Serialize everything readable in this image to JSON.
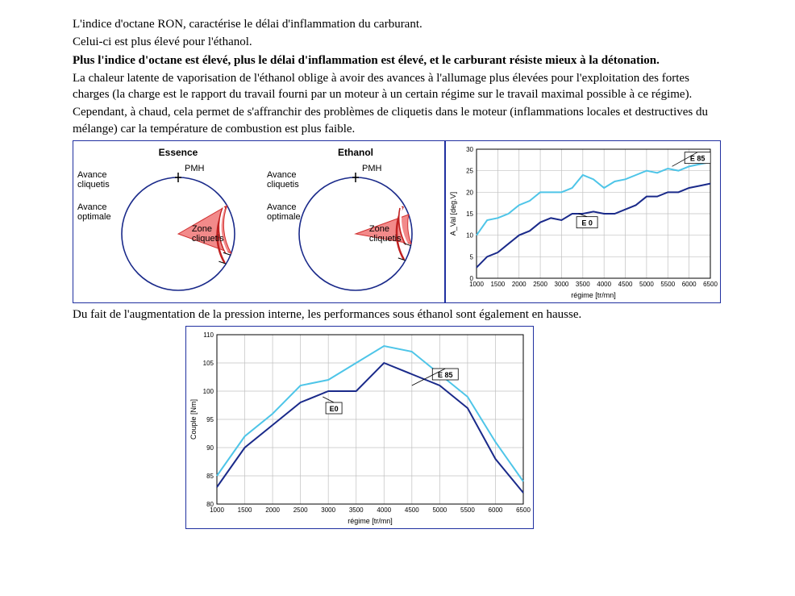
{
  "text": {
    "p1": "L'indice d'octane RON, caractérise le délai d'inflammation du carburant.",
    "p2": "Celui-ci est plus élevé pour l'éthanol.",
    "p3": "Plus l'indice d'octane est élevé, plus le délai d'inflammation est élevé, et le carburant résiste mieux à la détonation.",
    "p4": "La chaleur latente de vaporisation de l'éthanol oblige à avoir des avances à l'allumage plus élevées pour l'exploitation des fortes charges (la charge est le rapport du travail fourni par un moteur à un certain régime sur le travail maximal possible à ce régime).",
    "p5": "Cependant, à chaud, cela permet de s'affranchir des problèmes de cliquetis dans le moteur (inflammations locales et destructives du mélange) car la température de combustion est plus faible.",
    "p6": "Du fait de l'augmentation de la pression interne, les performances sous éthanol sont également en hausse."
  },
  "circles": {
    "essence": {
      "title": "Essence",
      "labels": {
        "pmh": "PMH",
        "avance_cliquetis": "Avance\ncliquetis",
        "avance_optimale": "Avance\noptimale",
        "zone": "Zone\ncliquetis"
      },
      "wedge_start_deg": 60,
      "wedge_end_deg": 110,
      "arc_optimale_deg": 122,
      "arc_cliquetis_deg": 112
    },
    "ethanol": {
      "title": "Ethanol",
      "labels": {
        "pmh": "PMH",
        "avance_cliquetis": "Avance\ncliquetis",
        "avance_optimale": "Avance\noptimale",
        "zone": "Zone\ncliquetis"
      },
      "wedge_start_deg": 70,
      "wedge_end_deg": 100,
      "arc_optimale_deg": 118,
      "arc_cliquetis_deg": 102
    },
    "style": {
      "circle_stroke": "#1a2a8a",
      "circle_stroke_w": 1.6,
      "wedge_fill": "#f28a8a",
      "wedge_stroke": "#d03030",
      "arc_optimale_stroke": "#c02020",
      "arc_cliquetis_stroke": "#ffffff",
      "radius": 70
    }
  },
  "advance_chart": {
    "type": "line",
    "xlabel": "régime [tr/mn]",
    "ylabel": "A_Val [deg.V]",
    "xlim": [
      1000,
      6500
    ],
    "xtick_step": 500,
    "ylim": [
      0,
      30
    ],
    "ytick_step": 5,
    "grid_color": "#c0c0c0",
    "series": [
      {
        "name": "E 85",
        "color": "#4ec5e8",
        "width": 2,
        "x": [
          1000,
          1250,
          1500,
          1750,
          2000,
          2250,
          2500,
          2750,
          3000,
          3250,
          3500,
          3750,
          4000,
          4250,
          4500,
          4750,
          5000,
          5250,
          5500,
          5750,
          6000,
          6250,
          6500
        ],
        "y": [
          10,
          13.5,
          14,
          15,
          17,
          18,
          20,
          20,
          20,
          21,
          24,
          23,
          21,
          22.5,
          23,
          24,
          25,
          24.5,
          25.5,
          25,
          26,
          26.5,
          27
        ]
      },
      {
        "name": "E 0",
        "color": "#1a2a8a",
        "width": 2,
        "x": [
          1000,
          1250,
          1500,
          1750,
          2000,
          2250,
          2500,
          2750,
          3000,
          3250,
          3500,
          3750,
          4000,
          4250,
          4500,
          4750,
          5000,
          5250,
          5500,
          5750,
          6000,
          6250,
          6500
        ],
        "y": [
          2.5,
          5,
          6,
          8,
          10,
          11,
          13,
          14,
          13.5,
          15,
          15,
          15.5,
          15,
          15,
          16,
          17,
          19,
          19,
          20,
          20,
          21,
          21.5,
          22
        ]
      }
    ],
    "legend": {
      "E85_pos": [
        6200,
        28
      ],
      "E0_pos": [
        3600,
        13
      ]
    }
  },
  "torque_chart": {
    "type": "line",
    "xlabel": "régime [tr/mn]",
    "ylabel": "Couple [Nm]",
    "xlim": [
      1000,
      6500
    ],
    "xtick_step": 500,
    "ylim": [
      80,
      110
    ],
    "ytick_step": 5,
    "grid_color": "#c0c0c0",
    "series": [
      {
        "name": "E 85",
        "color": "#4ec5e8",
        "width": 2,
        "x": [
          1000,
          1500,
          2000,
          2500,
          3000,
          3500,
          4000,
          4500,
          5000,
          5500,
          6000,
          6500
        ],
        "y": [
          85,
          92,
          96,
          101,
          102,
          105,
          108,
          107,
          103,
          99,
          91,
          84
        ]
      },
      {
        "name": "E0",
        "color": "#1a2a8a",
        "width": 2,
        "x": [
          1000,
          1500,
          2000,
          2500,
          3000,
          3500,
          4000,
          4500,
          5000,
          5500,
          6000,
          6500
        ],
        "y": [
          83,
          90,
          94,
          98,
          100,
          100,
          105,
          103,
          101,
          97,
          88,
          82
        ]
      }
    ],
    "legend": {
      "E85_pos": [
        5100,
        103
      ],
      "E0_pos": [
        3100,
        97
      ]
    }
  }
}
